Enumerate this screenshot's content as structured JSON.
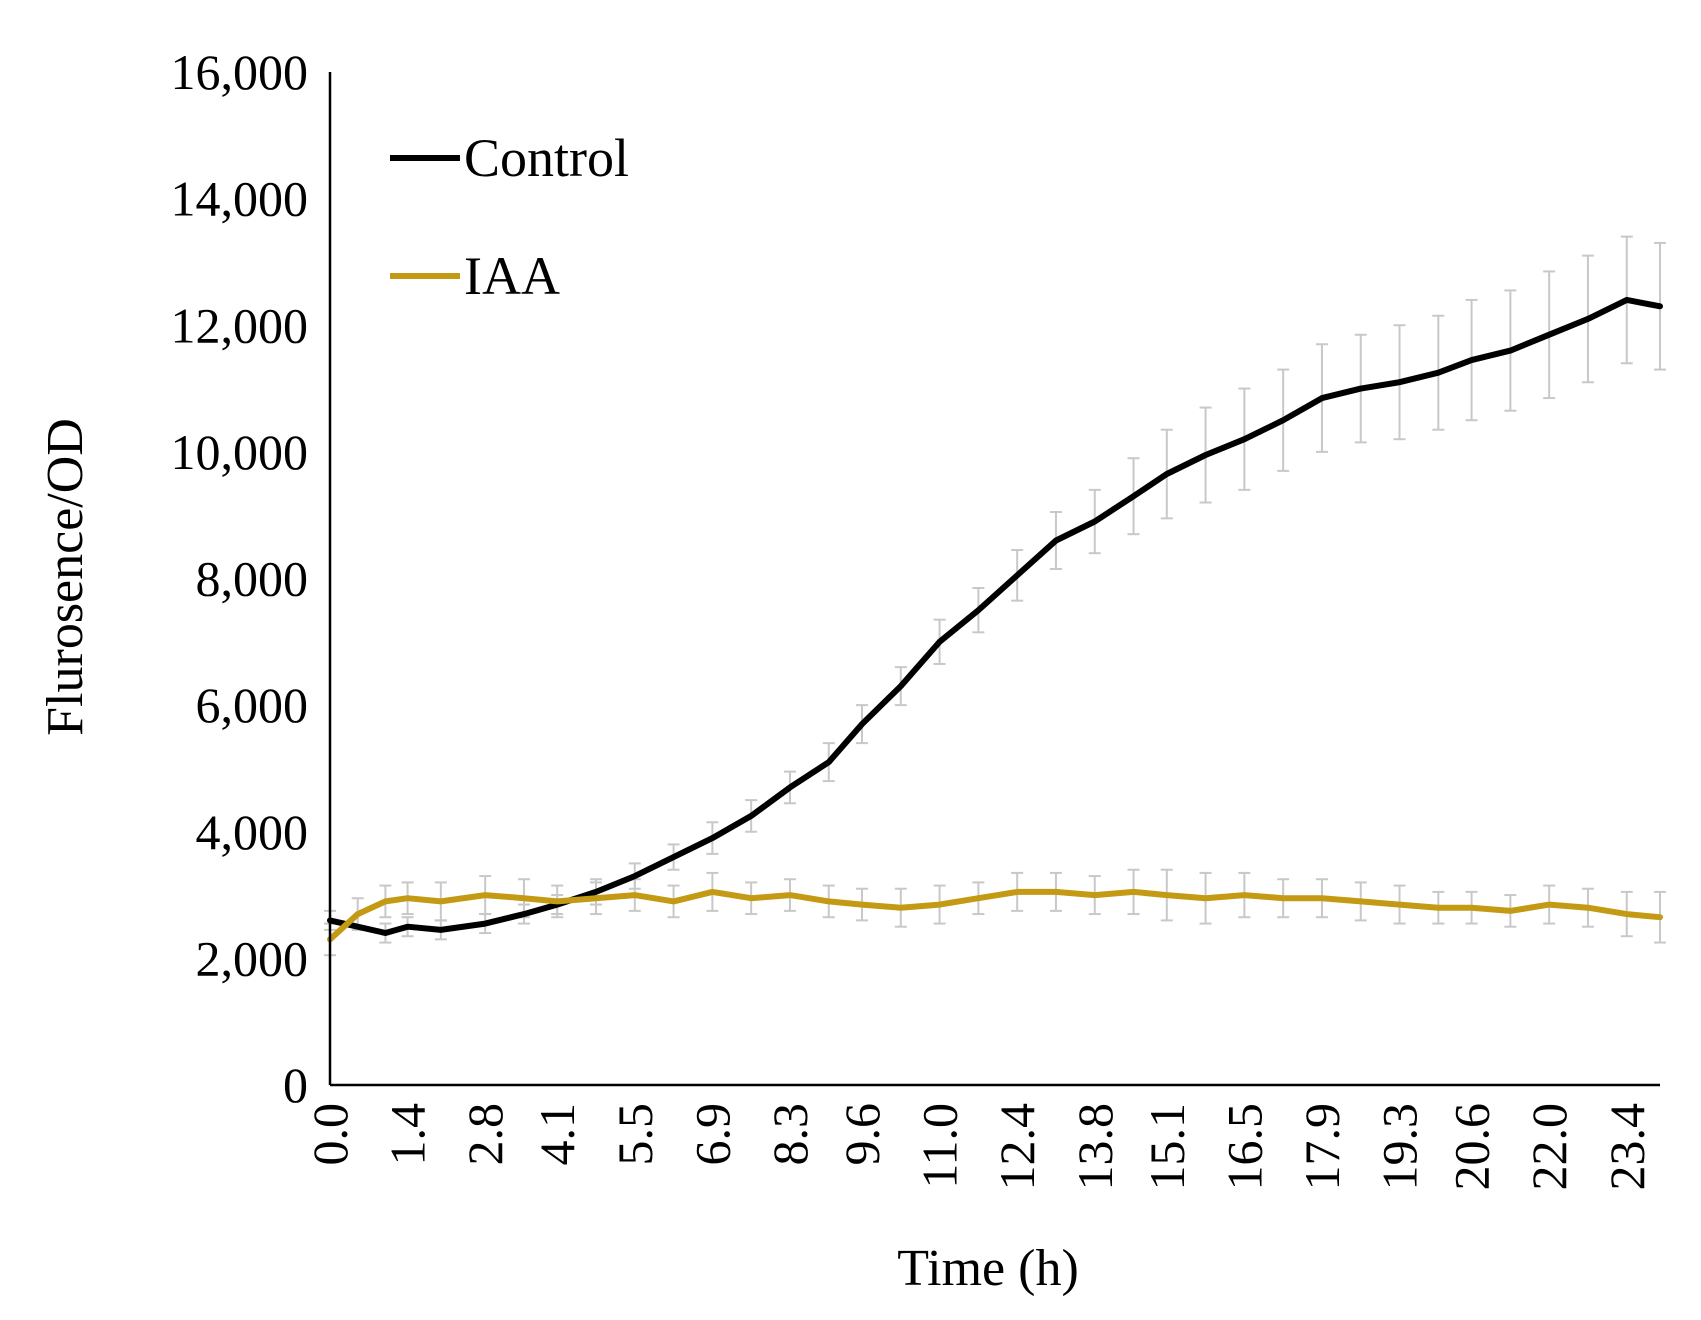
{
  "chart_data": {
    "type": "line",
    "title": "",
    "xlabel": "Time (h)",
    "ylabel": "Flurosence/OD",
    "xlim": [
      0,
      24.0
    ],
    "ylim": [
      0,
      16000
    ],
    "y_ticks": [
      0,
      2000,
      4000,
      6000,
      8000,
      10000,
      12000,
      14000,
      16000
    ],
    "y_tick_labels": [
      "0",
      "2,000",
      "4,000",
      "6,000",
      "8,000",
      "10,000",
      "12,000",
      "14,000",
      "16,000"
    ],
    "x_ticks": [
      0.0,
      1.4,
      2.8,
      4.1,
      5.5,
      6.9,
      8.3,
      9.6,
      11.0,
      12.4,
      13.8,
      15.1,
      16.5,
      17.9,
      19.3,
      20.6,
      22.0,
      23.4
    ],
    "x_tick_labels": [
      "0.0",
      "1.4",
      "2.8",
      "4.1",
      "5.5",
      "6.9",
      "8.3",
      "9.6",
      "11.0",
      "12.4",
      "13.8",
      "15.1",
      "16.5",
      "17.9",
      "19.3",
      "20.6",
      "22.0",
      "23.4"
    ],
    "grid": false,
    "legend_position": "top-left",
    "error_bar_color": "#c8c8c8",
    "series": [
      {
        "name": "Control",
        "color": "#000000",
        "x": [
          0.0,
          1.0,
          1.4,
          2.0,
          2.8,
          3.5,
          4.1,
          4.8,
          5.5,
          6.2,
          6.9,
          7.6,
          8.3,
          9.0,
          9.6,
          10.3,
          11.0,
          11.7,
          12.4,
          13.1,
          13.8,
          14.5,
          15.1,
          15.8,
          16.5,
          17.2,
          17.9,
          18.6,
          19.3,
          20.0,
          20.6,
          21.3,
          22.0,
          22.7,
          23.4,
          24.0
        ],
        "y": [
          2600,
          2400,
          2500,
          2450,
          2550,
          2700,
          2850,
          3050,
          3300,
          3600,
          3900,
          4250,
          4700,
          5100,
          5700,
          6300,
          7000,
          7500,
          8050,
          8600,
          8900,
          9300,
          9650,
          9950,
          10200,
          10500,
          10850,
          11000,
          11100,
          11250,
          11450,
          11600,
          11850,
          12100,
          12400,
          12300
        ],
        "error": [
          150,
          150,
          150,
          150,
          150,
          150,
          150,
          200,
          200,
          200,
          250,
          250,
          250,
          300,
          300,
          300,
          350,
          350,
          400,
          450,
          500,
          600,
          700,
          750,
          800,
          800,
          850,
          850,
          900,
          900,
          950,
          950,
          1000,
          1000,
          1000,
          1000
        ]
      },
      {
        "name": "IAA",
        "color": "#c49a14",
        "x": [
          0.0,
          0.5,
          1.0,
          1.4,
          2.0,
          2.8,
          3.5,
          4.1,
          4.8,
          5.5,
          6.2,
          6.9,
          7.6,
          8.3,
          9.0,
          9.6,
          10.3,
          11.0,
          11.7,
          12.4,
          13.1,
          13.8,
          14.5,
          15.1,
          15.8,
          16.5,
          17.2,
          17.9,
          18.6,
          19.3,
          20.0,
          20.6,
          21.3,
          22.0,
          22.7,
          23.4,
          24.0
        ],
        "y": [
          2300,
          2700,
          2900,
          2950,
          2900,
          3000,
          2950,
          2900,
          2950,
          3000,
          2900,
          3050,
          2950,
          3000,
          2900,
          2850,
          2800,
          2850,
          2950,
          3050,
          3050,
          3000,
          3050,
          3000,
          2950,
          3000,
          2950,
          2950,
          2900,
          2850,
          2800,
          2800,
          2750,
          2850,
          2800,
          2700,
          2650
        ],
        "error": [
          250,
          250,
          250,
          250,
          300,
          300,
          300,
          250,
          250,
          250,
          250,
          300,
          250,
          250,
          250,
          250,
          300,
          300,
          250,
          300,
          300,
          300,
          350,
          400,
          400,
          350,
          300,
          300,
          300,
          300,
          250,
          250,
          250,
          300,
          300,
          350,
          400
        ]
      }
    ]
  }
}
